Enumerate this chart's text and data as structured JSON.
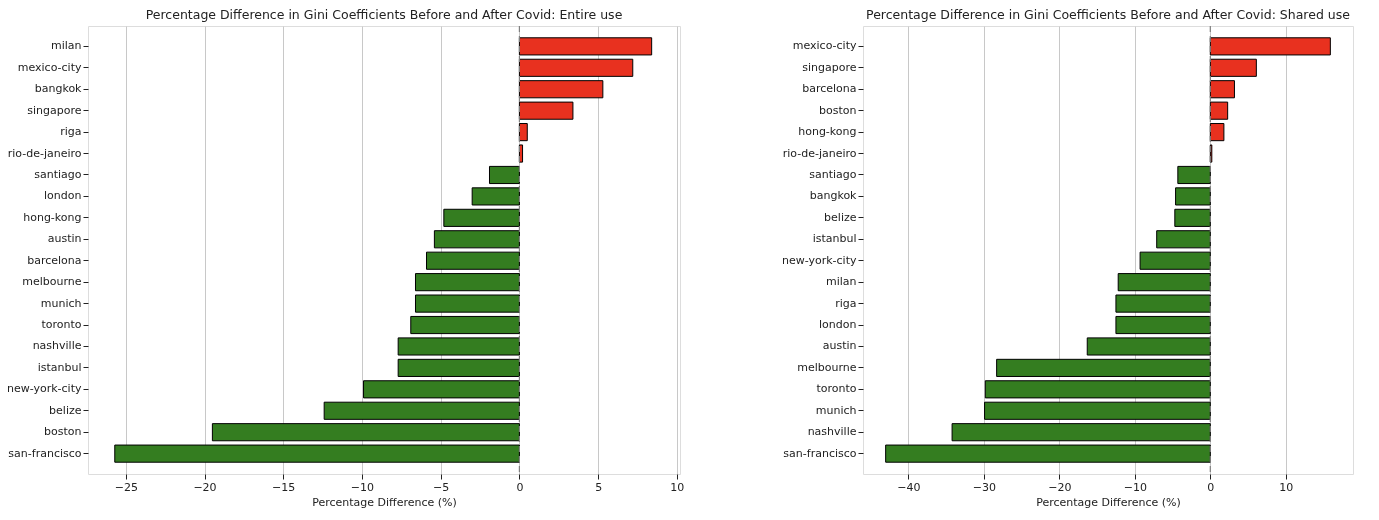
{
  "chart_data": [
    {
      "type": "bar",
      "orientation": "horizontal",
      "title": "Percentage Difference in Gini Coefficients Before and After Covid: Entire use",
      "xlabel": "Percentage Difference (%)",
      "categories": [
        "milan",
        "mexico-city",
        "bangkok",
        "singapore",
        "riga",
        "rio-de-janeiro",
        "santiago",
        "london",
        "hong-kong",
        "austin",
        "barcelona",
        "melbourne",
        "munich",
        "toronto",
        "nashville",
        "istanbul",
        "new-york-city",
        "belize",
        "boston",
        "san-francisco"
      ],
      "values": [
        8.4,
        7.2,
        5.3,
        3.4,
        0.5,
        0.2,
        -1.9,
        -3.0,
        -4.8,
        -5.4,
        -5.9,
        -6.6,
        -6.6,
        -6.9,
        -7.7,
        -7.7,
        -9.9,
        -12.4,
        -19.5,
        -25.7
      ],
      "colors": [
        "#e8311f",
        "#e8311f",
        "#e8311f",
        "#e8311f",
        "#e8311f",
        "#e8311f",
        "#347d20",
        "#347d20",
        "#347d20",
        "#347d20",
        "#347d20",
        "#347d20",
        "#347d20",
        "#347d20",
        "#347d20",
        "#347d20",
        "#347d20",
        "#347d20",
        "#347d20",
        "#347d20"
      ],
      "xlim": [
        -27.4,
        10.2
      ],
      "xticks": [
        -25,
        -20,
        -15,
        -10,
        -5,
        0,
        5,
        10
      ],
      "grid": "x",
      "ref_lines": [
        {
          "axis": "x",
          "value": 0,
          "color": "#808080",
          "line_style": "dashed"
        }
      ]
    },
    {
      "type": "bar",
      "orientation": "horizontal",
      "title": "Percentage Difference in Gini Coefficients Before and After Covid: Shared use",
      "xlabel": "Percentage Difference (%)",
      "categories": [
        "mexico-city",
        "singapore",
        "barcelona",
        "boston",
        "hong-kong",
        "rio-de-janeiro",
        "santiago",
        "bangkok",
        "belize",
        "istanbul",
        "new-york-city",
        "milan",
        "riga",
        "london",
        "austin",
        "melbourne",
        "toronto",
        "munich",
        "nashville",
        "san-francisco"
      ],
      "values": [
        15.9,
        6.1,
        3.2,
        2.3,
        1.8,
        0.2,
        -4.3,
        -4.6,
        -4.7,
        -7.1,
        -9.3,
        -12.2,
        -12.5,
        -12.5,
        -16.3,
        -28.3,
        -29.8,
        -29.9,
        -34.2,
        -43.0
      ],
      "colors": [
        "#e8311f",
        "#e8311f",
        "#e8311f",
        "#e8311f",
        "#e8311f",
        "#e8311f",
        "#347d20",
        "#347d20",
        "#347d20",
        "#347d20",
        "#347d20",
        "#347d20",
        "#347d20",
        "#347d20",
        "#347d20",
        "#347d20",
        "#347d20",
        "#347d20",
        "#347d20",
        "#347d20"
      ],
      "xlim": [
        -46.0,
        18.9
      ],
      "xticks": [
        -40,
        -30,
        -20,
        -10,
        0,
        10
      ],
      "grid": "x",
      "ref_lines": [
        {
          "axis": "x",
          "value": 0,
          "color": "#808080",
          "line_style": "dashed"
        }
      ]
    }
  ]
}
